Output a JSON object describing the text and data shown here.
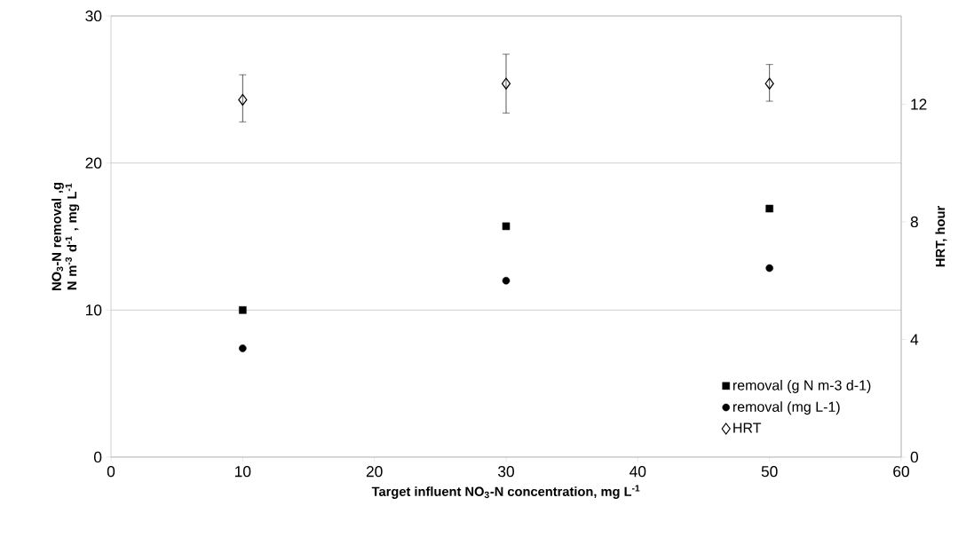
{
  "chart_data": {
    "type": "scatter",
    "x": [
      10,
      30,
      50
    ],
    "xlabel": "Target influent NO$_{3}$-N concentration,  mg L$^{-1}$",
    "ylabel": "NO$_{3}$-N removal ,g N m$^{-3}$ d$^{-1}$ , mg L$^{-1}$",
    "y2label": "HRT, hour",
    "xlim": [
      0,
      60
    ],
    "xticks": [
      0,
      10,
      20,
      30,
      40,
      50,
      60
    ],
    "ylim": [
      0,
      30
    ],
    "yticks": [
      0,
      10,
      20,
      30
    ],
    "y2lim": [
      0,
      15
    ],
    "y2ticks": [
      0,
      4,
      8,
      12
    ],
    "grid": "y",
    "legend": "bottom right",
    "series": [
      {
        "name": "removal (g N m-3 d-1)",
        "color": "#000000",
        "marker": "square",
        "values": [
          10.0,
          15.7,
          16.9
        ]
      },
      {
        "name": "removal (mg L-1)",
        "color": "#000000",
        "marker": "circle",
        "values": [
          7.4,
          12.0,
          12.85
        ]
      },
      {
        "name": "HRT",
        "color": "#000000",
        "marker": "diamond",
        "axis": "y2",
        "values": [
          12.15,
          12.7,
          12.7
        ],
        "errors": [
          [
            11.4,
            13.0
          ],
          [
            11.7,
            13.7
          ],
          [
            12.1,
            13.35
          ]
        ]
      }
    ]
  }
}
